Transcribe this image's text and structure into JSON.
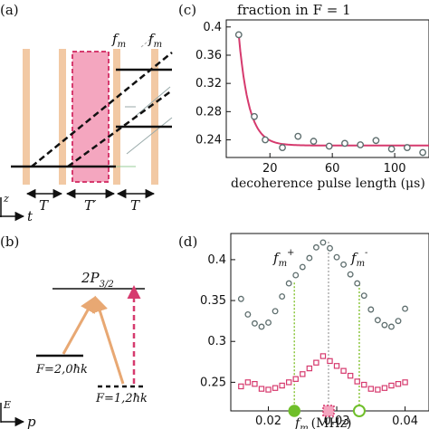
{
  "panels": {
    "a": {
      "label": "(a)",
      "fm_labels": [
        "f",
        "f"
      ],
      "fm_sub": "m",
      "t_labels": [
        "T",
        "T′",
        "T"
      ],
      "axis_t": "t",
      "axis_z": "z"
    },
    "b": {
      "label": "(b)",
      "upper_level": "2P",
      "upper_sub": "3/2",
      "level_left": "F=2,0ħk",
      "level_right": "F=1,2ħk",
      "axis_e": "E",
      "axis_p": "p"
    },
    "c": {
      "label": "(c)",
      "title": "fraction in F = 1",
      "xlabel": "decoherence pulse length (μs)"
    },
    "d": {
      "label": "(d)",
      "fm_plus": "f",
      "fm_minus": "f",
      "fm_sub": "m",
      "sup_plus": "+",
      "sup_minus": "-",
      "xlabel_f": "f",
      "xlabel_sub": "m",
      "xlabel_unit": "(MHz)"
    }
  },
  "colors": {
    "accent_pink": "#d63a6e",
    "pulse_orange": "#f2c9a4",
    "arrow_orange": "#e8a873",
    "marker_green": "#6fbf2a",
    "dots_gray": "#5e6e6e"
  },
  "chart_data": [
    {
      "type": "scatter",
      "panel": "c",
      "title": "fraction in F = 1",
      "xlabel": "decoherence pulse length (μs)",
      "xlim": [
        -8,
        122
      ],
      "ylim": [
        0.215,
        0.41
      ],
      "xticks": [
        20,
        60,
        100
      ],
      "yticks": [
        0.24,
        0.28,
        0.32,
        0.36,
        0.4
      ],
      "xtick_labels": [
        "20",
        "60",
        "100"
      ],
      "ytick_labels": [
        "0.24",
        "0.28",
        "0.32",
        "0.36",
        "0.4"
      ],
      "series": [
        {
          "x": [
            0,
            10,
            17,
            28,
            38,
            48,
            58,
            68,
            78,
            88,
            98,
            108,
            118
          ],
          "y": [
            0.389,
            0.273,
            0.24,
            0.229,
            0.245,
            0.238,
            0.231,
            0.235,
            0.233,
            0.239,
            0.227,
            0.229,
            0.222
          ]
        }
      ],
      "fit": {
        "a": 0.232,
        "b": 0.157,
        "tau": 6.5,
        "x_start": 0,
        "x_end": 122
      }
    },
    {
      "type": "scatter",
      "panel": "d",
      "xlabel": "f_m (MHz)",
      "xlim": [
        0.0145,
        0.0435
      ],
      "ylim": [
        0.215,
        0.432
      ],
      "xticks": [
        0.02,
        0.03,
        0.04
      ],
      "yticks": [
        0.25,
        0.3,
        0.35,
        0.4
      ],
      "xtick_labels": [
        "0.02",
        "0.03",
        "0.04"
      ],
      "ytick_labels": [
        "0.25",
        "0.3",
        "0.35",
        "0.4"
      ],
      "markers": {
        "fm_plus": 0.0238,
        "center": 0.0288,
        "fm_minus": 0.0333
      },
      "series": [
        {
          "marker": "circle",
          "x": [
            0.016,
            0.017,
            0.018,
            0.019,
            0.02,
            0.021,
            0.022,
            0.023,
            0.024,
            0.025,
            0.026,
            0.027,
            0.028,
            0.029,
            0.03,
            0.031,
            0.032,
            0.033,
            0.034,
            0.035,
            0.036,
            0.037,
            0.038,
            0.039,
            0.04
          ],
          "y": [
            0.352,
            0.333,
            0.322,
            0.318,
            0.323,
            0.337,
            0.355,
            0.371,
            0.381,
            0.391,
            0.402,
            0.415,
            0.421,
            0.414,
            0.403,
            0.394,
            0.382,
            0.371,
            0.356,
            0.339,
            0.326,
            0.32,
            0.318,
            0.325,
            0.34
          ]
        },
        {
          "marker": "square",
          "x": [
            0.016,
            0.017,
            0.018,
            0.019,
            0.02,
            0.021,
            0.022,
            0.023,
            0.024,
            0.025,
            0.026,
            0.027,
            0.028,
            0.029,
            0.03,
            0.031,
            0.032,
            0.033,
            0.034,
            0.035,
            0.036,
            0.037,
            0.038,
            0.039,
            0.04
          ],
          "y": [
            0.245,
            0.25,
            0.248,
            0.242,
            0.241,
            0.243,
            0.246,
            0.25,
            0.254,
            0.26,
            0.267,
            0.274,
            0.282,
            0.276,
            0.27,
            0.264,
            0.258,
            0.251,
            0.247,
            0.242,
            0.241,
            0.243,
            0.246,
            0.248,
            0.25
          ]
        }
      ]
    }
  ]
}
